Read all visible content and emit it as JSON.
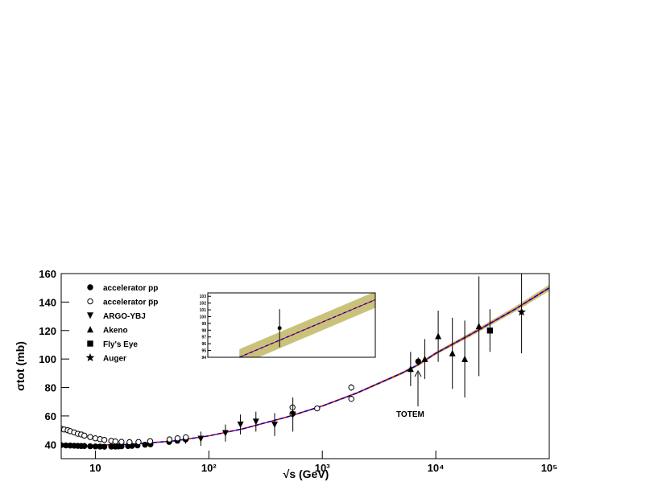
{
  "chart_data": {
    "type": "scatter",
    "x_label": "√s (GeV)",
    "y_label": "σtot (mb)",
    "log_x": true,
    "xlim": [
      5,
      100000
    ],
    "ylim": [
      30,
      160
    ],
    "xticks": [
      10,
      {
        "value": 100,
        "label": "10²"
      },
      {
        "value": 1000,
        "label": "10³"
      },
      {
        "value": 10000,
        "label": "10⁴"
      },
      {
        "value": 100000,
        "label": "10⁵"
      }
    ],
    "yticks": [
      40,
      60,
      80,
      100,
      120,
      140,
      160
    ],
    "annotation": "TOTEM",
    "series": [
      {
        "name": "accelerator pp",
        "marker": "filled-circle",
        "color": "#000000",
        "x": [
          5,
          5.5,
          6,
          6.5,
          7,
          7.5,
          8,
          9,
          10,
          11,
          12,
          13.8,
          15,
          16,
          17,
          19.4,
          21,
          23.5,
          27.4,
          30.6,
          44.7,
          52.8,
          62.5,
          7000
        ],
        "values": [
          39.5,
          39.3,
          39.2,
          39.1,
          39,
          38.9,
          38.9,
          38.7,
          38.6,
          38.5,
          38.4,
          38.5,
          38.5,
          38.6,
          38.7,
          38.9,
          39,
          39.3,
          39.8,
          40.1,
          41.8,
          42.6,
          43.5,
          98.3
        ],
        "errors": [
          0.3,
          0.3,
          0.3,
          0.3,
          0.3,
          0.3,
          0.3,
          0.3,
          0.3,
          0.3,
          0.3,
          0.3,
          0.3,
          0.3,
          0.3,
          0.3,
          0.3,
          0.3,
          0.3,
          0.3,
          0.3,
          0.3,
          3,
          2.8
        ]
      },
      {
        "name": "accelerator p̅p",
        "marker": "open-circle",
        "color": "#000000",
        "x": [
          5,
          5.3,
          5.7,
          6,
          6.5,
          7,
          7.5,
          8,
          9,
          10,
          11,
          12,
          13.8,
          15,
          17,
          20,
          24,
          30.4,
          45,
          53,
          62.7,
          546,
          546,
          900,
          1800,
          1800
        ],
        "values": [
          51,
          50.5,
          50,
          49.3,
          48.5,
          47.5,
          47,
          46.2,
          45.2,
          44.3,
          43.7,
          43.2,
          42.5,
          42.1,
          41.8,
          41.6,
          41.7,
          42.3,
          43.5,
          44.3,
          45,
          61.5,
          66,
          65.3,
          72,
          80
        ],
        "errors": [
          1,
          1,
          1,
          1,
          0.8,
          0.8,
          0.7,
          0.7,
          0.6,
          0.5,
          0.5,
          0.5,
          0.5,
          0.5,
          0.5,
          0.5,
          0.5,
          0.5,
          0.8,
          0.8,
          0.9,
          1.5,
          1.5,
          0.8,
          2,
          2.3
        ]
      },
      {
        "name": "ARGO-YBJ",
        "marker": "down-triangle",
        "color": "#000000",
        "x": [
          85,
          140,
          190,
          260,
          380,
          550
        ],
        "values": [
          44,
          48,
          54,
          56,
          54,
          61
        ],
        "errors": [
          5,
          6,
          7,
          7,
          8,
          12
        ]
      },
      {
        "name": "Akeno",
        "marker": "up-triangle",
        "color": "#000000",
        "x": [
          6000,
          8000,
          10500,
          14000,
          18000,
          24000
        ],
        "values": [
          93,
          100,
          116,
          104,
          100,
          123
        ],
        "errors": [
          12,
          14,
          18,
          25,
          27,
          35
        ]
      },
      {
        "name": "Fly's Eye",
        "marker": "square",
        "color": "#000000",
        "x": [
          30000
        ],
        "values": [
          120
        ],
        "errors": [
          15
        ]
      },
      {
        "name": "Auger",
        "marker": "star",
        "color": "#000000",
        "x": [
          57000
        ],
        "values": [
          133
        ],
        "errors": [
          29
        ]
      }
    ],
    "fit": {
      "line_colors": [
        "#e00000",
        "#0000cc"
      ],
      "band_color": "#c9c27a",
      "x": [
        10,
        20,
        50,
        100,
        200,
        500,
        1000,
        2000,
        5000,
        7000,
        10000,
        20000,
        50000,
        100000
      ],
      "values": [
        39.5,
        40,
        42.5,
        46,
        51,
        59.5,
        67,
        76,
        90,
        96,
        104,
        117,
        135,
        150
      ],
      "upper": [
        39.8,
        40.3,
        42.8,
        46.4,
        51.4,
        60,
        67.6,
        76.7,
        90.9,
        97,
        105.1,
        118.4,
        136.8,
        152.2
      ],
      "lower": [
        39.2,
        39.7,
        42.2,
        45.6,
        50.6,
        59,
        66.4,
        75.3,
        89.1,
        95,
        102.9,
        115.6,
        133.2,
        147.8
      ]
    },
    "inset": {
      "xlim": [
        5500,
        9000
      ],
      "ylim": [
        94,
        103.5
      ],
      "yticks": [
        94,
        95,
        96,
        97,
        98,
        99,
        100,
        101,
        102,
        103
      ],
      "point": {
        "x": 7000,
        "value": 98.3,
        "error": 2.8
      },
      "fit": {
        "x": [
          6160,
          9000
        ],
        "values": [
          94,
          102.5
        ],
        "upper": [
          95.2,
          103.7
        ],
        "lower": [
          92.8,
          101.3
        ]
      }
    }
  }
}
